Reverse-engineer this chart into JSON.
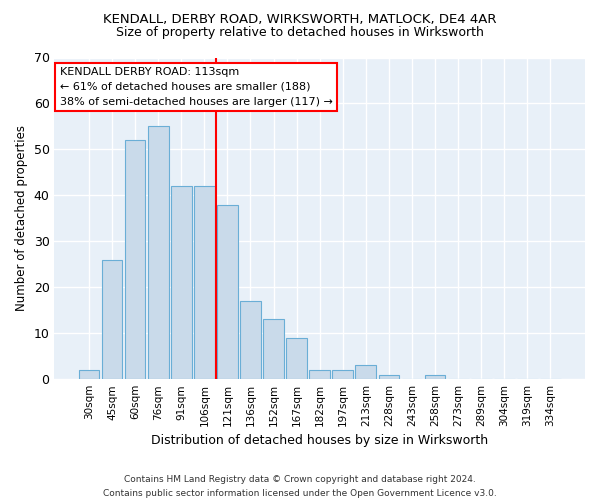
{
  "title1": "KENDALL, DERBY ROAD, WIRKSWORTH, MATLOCK, DE4 4AR",
  "title2": "Size of property relative to detached houses in Wirksworth",
  "xlabel": "Distribution of detached houses by size in Wirksworth",
  "ylabel": "Number of detached properties",
  "categories": [
    "30sqm",
    "45sqm",
    "60sqm",
    "76sqm",
    "91sqm",
    "106sqm",
    "121sqm",
    "136sqm",
    "152sqm",
    "167sqm",
    "182sqm",
    "197sqm",
    "213sqm",
    "228sqm",
    "243sqm",
    "258sqm",
    "273sqm",
    "289sqm",
    "304sqm",
    "319sqm",
    "334sqm"
  ],
  "values": [
    2,
    26,
    52,
    55,
    42,
    42,
    38,
    17,
    13,
    9,
    2,
    2,
    3,
    1,
    0,
    1,
    0,
    0,
    0,
    0,
    0
  ],
  "bar_color": "#c9daea",
  "bar_edge_color": "#6aaed6",
  "vline_x": 6,
  "vline_color": "red",
  "annotation_text": "KENDALL DERBY ROAD: 113sqm\n← 61% of detached houses are smaller (188)\n38% of semi-detached houses are larger (117) →",
  "annotation_box_color": "white",
  "annotation_box_edge_color": "red",
  "ylim": [
    0,
    70
  ],
  "yticks": [
    0,
    10,
    20,
    30,
    40,
    50,
    60,
    70
  ],
  "footnote": "Contains HM Land Registry data © Crown copyright and database right 2024.\nContains public sector information licensed under the Open Government Licence v3.0.",
  "bg_color": "#ffffff",
  "plot_bg_color": "#e8f0f8",
  "grid_color": "#ffffff"
}
